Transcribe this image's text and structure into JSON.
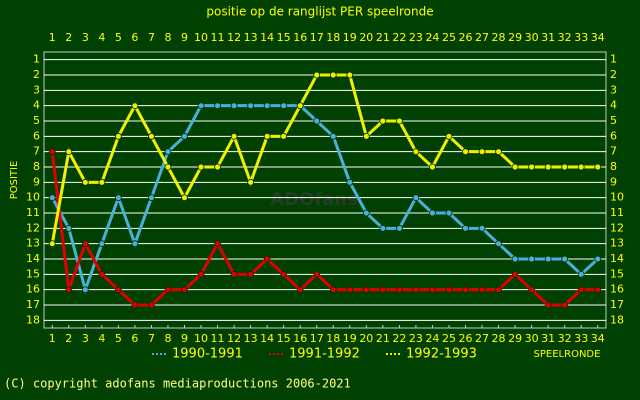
{
  "chart_data": {
    "type": "line",
    "title": "positie op de ranglijst PER speelronde",
    "y_label": "POSITIE",
    "x_label": "SPEELRONDE",
    "watermark": "ADOfans",
    "footer": "(C) copyright adofans mediaproductions 2006-2021",
    "x": [
      1,
      2,
      3,
      4,
      5,
      6,
      7,
      8,
      9,
      10,
      11,
      12,
      13,
      14,
      15,
      16,
      17,
      18,
      19,
      20,
      21,
      22,
      23,
      24,
      25,
      26,
      27,
      28,
      29,
      30,
      31,
      32,
      33,
      34
    ],
    "xlim": [
      0.5,
      34.5
    ],
    "xticks": [
      1,
      2,
      3,
      4,
      5,
      6,
      7,
      8,
      9,
      10,
      11,
      12,
      13,
      14,
      15,
      16,
      17,
      18,
      19,
      20,
      21,
      22,
      23,
      24,
      25,
      26,
      27,
      28,
      29,
      30,
      31,
      32,
      33,
      34
    ],
    "ylim": [
      0.5,
      18.5
    ],
    "yticks": [
      1,
      2,
      3,
      4,
      5,
      6,
      7,
      8,
      9,
      10,
      11,
      12,
      13,
      14,
      15,
      16,
      17,
      18
    ],
    "y_inverted": true,
    "grid": true,
    "series": [
      {
        "name": "1990-1991",
        "color": "#4ab0d8",
        "values": [
          10,
          12,
          16,
          13,
          10,
          13,
          10,
          7,
          6,
          4,
          4,
          4,
          4,
          4,
          4,
          4,
          5,
          6,
          9,
          11,
          12,
          12,
          10,
          11,
          11,
          12,
          12,
          13,
          14,
          14,
          14,
          14,
          15,
          14
        ]
      },
      {
        "name": "1991-1992",
        "color": "#e00000",
        "values": [
          7,
          16,
          13,
          15,
          16,
          17,
          17,
          16,
          16,
          15,
          13,
          15,
          15,
          14,
          15,
          16,
          15,
          16,
          16,
          16,
          16,
          16,
          16,
          16,
          16,
          16,
          16,
          16,
          15,
          16,
          17,
          17,
          16,
          16
        ]
      },
      {
        "name": "1992-1993",
        "color": "#f0f000",
        "values": [
          13,
          7,
          9,
          9,
          6,
          4,
          6,
          8,
          10,
          8,
          8,
          6,
          9,
          6,
          6,
          4,
          2,
          2,
          2,
          6,
          5,
          5,
          7,
          8,
          6,
          7,
          7,
          7,
          8,
          8,
          8,
          8,
          8,
          8
        ]
      }
    ]
  }
}
